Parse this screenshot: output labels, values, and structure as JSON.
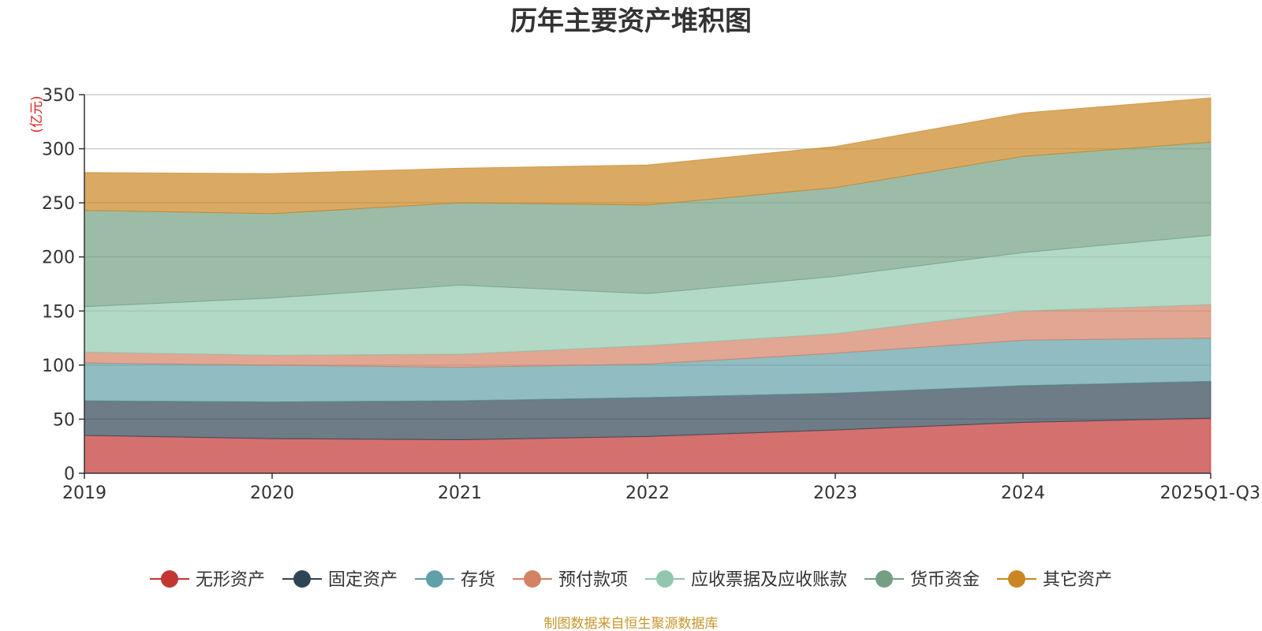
{
  "chart_data": {
    "type": "area",
    "stacked": true,
    "title": "历年主要资产堆积图",
    "ylabel": "(亿元)",
    "xlabel": "",
    "ylim": [
      0,
      350
    ],
    "yticks": [
      0,
      50,
      100,
      150,
      200,
      250,
      300,
      350
    ],
    "categories": [
      "2019",
      "2020",
      "2021",
      "2022",
      "2023",
      "2024",
      "2025Q1-Q3"
    ],
    "series": [
      {
        "name": "无形资产",
        "color": "#c23531",
        "values": [
          35,
          32,
          31,
          34,
          40,
          47,
          51
        ]
      },
      {
        "name": "固定资产",
        "color": "#2f4554",
        "values": [
          32,
          34,
          36,
          36,
          34,
          34,
          34
        ]
      },
      {
        "name": "存货",
        "color": "#61a0a8",
        "values": [
          35,
          34,
          31,
          31,
          37,
          42,
          40
        ]
      },
      {
        "name": "预付款项",
        "color": "#d48265",
        "values": [
          10,
          9,
          12,
          17,
          18,
          27,
          31
        ]
      },
      {
        "name": "应收票据及应收账款",
        "color": "#91c7ae",
        "values": [
          42,
          53,
          64,
          48,
          53,
          54,
          64
        ]
      },
      {
        "name": "货币资金",
        "color": "#749f83",
        "values": [
          89,
          78,
          76,
          82,
          82,
          89,
          86
        ]
      },
      {
        "name": "其它资产",
        "color": "#ca8622",
        "values": [
          35,
          37,
          32,
          37,
          38,
          40,
          41
        ]
      }
    ],
    "grid": true,
    "legend_position": "bottom"
  },
  "source_note": "制图数据来自恒生聚源数据库"
}
